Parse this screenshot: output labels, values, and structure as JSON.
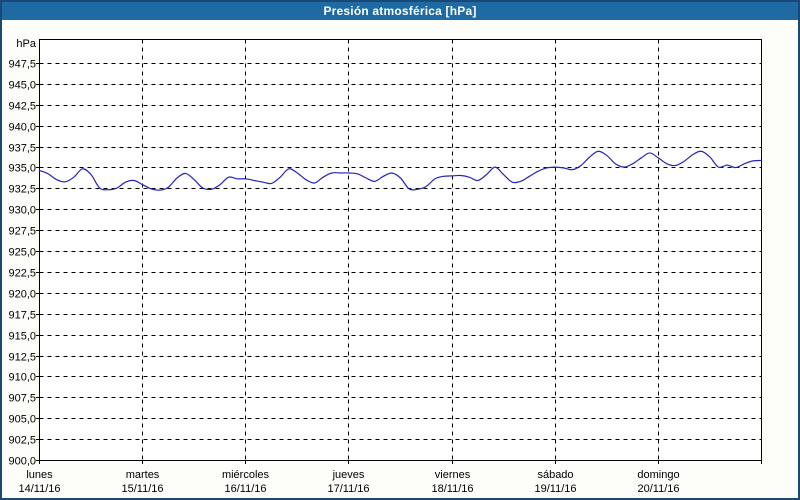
{
  "window": {
    "title": "Presión atmosférica [hPa]"
  },
  "colors": {
    "titlebar_bg": "#1e6aa3",
    "titlebar_text": "#ffffff",
    "frame_border": "#1a4a74",
    "background": "#fdfdfa",
    "grid": "#000000",
    "axis": "#000000",
    "text": "#000000",
    "series_line": "#2424bc"
  },
  "chart_data": {
    "type": "line",
    "title": "Presión atmosférica [hPa]",
    "grid": {
      "style": "dashed",
      "horizontal": true,
      "vertical": true
    },
    "legend": "none",
    "y_axis": {
      "unit": "hPa",
      "min": 900,
      "max": 950.3,
      "tick_step": 2.5,
      "ticks": [
        {
          "value": 947.5,
          "label": "947,5"
        },
        {
          "value": 945.0,
          "label": "945,0"
        },
        {
          "value": 942.5,
          "label": "942,5"
        },
        {
          "value": 940.0,
          "label": "940,0"
        },
        {
          "value": 937.5,
          "label": "937,5"
        },
        {
          "value": 935.0,
          "label": "935,0"
        },
        {
          "value": 932.5,
          "label": "932,5"
        },
        {
          "value": 930.0,
          "label": "930,0"
        },
        {
          "value": 927.5,
          "label": "927,5"
        },
        {
          "value": 925.0,
          "label": "925,0"
        },
        {
          "value": 922.5,
          "label": "922,5"
        },
        {
          "value": 920.0,
          "label": "920,0"
        },
        {
          "value": 917.5,
          "label": "917,5"
        },
        {
          "value": 915.0,
          "label": "915,0"
        },
        {
          "value": 912.5,
          "label": "912,5"
        },
        {
          "value": 910.0,
          "label": "910,0"
        },
        {
          "value": 907.5,
          "label": "907,5"
        },
        {
          "value": 905.0,
          "label": "905,0"
        },
        {
          "value": 902.5,
          "label": "902,5"
        },
        {
          "value": 900.0,
          "label": "900,0"
        }
      ]
    },
    "x_axis": {
      "total_hours": 168,
      "days": [
        {
          "name": "lunes",
          "date": "14/11/16"
        },
        {
          "name": "martes",
          "date": "15/11/16"
        },
        {
          "name": "miércoles",
          "date": "16/11/16"
        },
        {
          "name": "jueves",
          "date": "17/11/16"
        },
        {
          "name": "viernes",
          "date": "18/11/16"
        },
        {
          "name": "sábado",
          "date": "19/11/16"
        },
        {
          "name": "domingo",
          "date": "20/11/16"
        }
      ]
    },
    "series": [
      {
        "name": "Presión atmosférica",
        "color": "#2424bc",
        "sample_interval_hours": 2,
        "values_hpa": [
          934.7,
          934.3,
          933.6,
          933.35,
          933.9,
          934.9,
          934.2,
          932.6,
          932.4,
          932.6,
          933.3,
          933.5,
          933.0,
          932.5,
          932.35,
          932.7,
          933.8,
          934.35,
          933.6,
          932.6,
          932.45,
          933.0,
          933.9,
          933.7,
          933.7,
          933.5,
          933.3,
          933.15,
          933.9,
          934.9,
          934.4,
          933.6,
          933.2,
          933.9,
          934.4,
          934.4,
          934.4,
          934.3,
          933.8,
          933.4,
          934.0,
          934.4,
          933.8,
          932.5,
          932.45,
          932.8,
          933.7,
          934.0,
          934.05,
          934.1,
          933.9,
          933.5,
          934.2,
          935.1,
          934.2,
          933.3,
          933.4,
          934.0,
          934.6,
          935.0,
          935.1,
          935.0,
          934.8,
          935.3,
          936.3,
          937.0,
          936.5,
          935.5,
          935.1,
          935.5,
          936.2,
          936.8,
          936.2,
          935.5,
          935.3,
          935.8,
          936.6,
          937.0,
          936.3,
          935.1,
          935.35,
          935.05,
          935.5,
          935.85,
          935.9
        ]
      }
    ]
  }
}
